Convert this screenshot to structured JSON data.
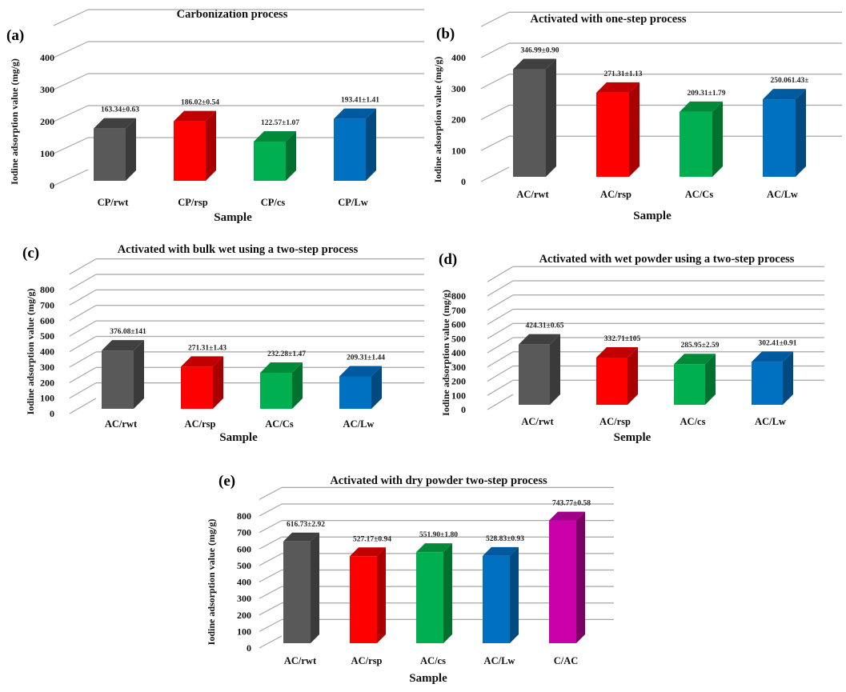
{
  "figure": {
    "colors": {
      "gray": [
        "#595959",
        "#3a3a3a",
        "#404040"
      ],
      "red": [
        "#ff0000",
        "#a80000",
        "#c00000"
      ],
      "green": [
        "#00b050",
        "#00702f",
        "#008a3a"
      ],
      "blue": [
        "#0070c0",
        "#004a80",
        "#005aa0"
      ],
      "magenta": [
        "#cc00aa",
        "#7a0066",
        "#a0008a"
      ]
    }
  },
  "chart_data": [
    {
      "id": "a",
      "panel_label": "(a)",
      "type": "bar",
      "style": "3d-column",
      "title": "Carbonization  process",
      "xlabel": "Sample",
      "ylabel": "Iodine adsorption value (mg/g)",
      "ylim": [
        0,
        400
      ],
      "yticks": [
        0,
        100,
        200,
        300,
        400
      ],
      "grid": true,
      "categories": [
        "CP/rwt",
        "CP/rsp",
        "CP/cs",
        "CP/Lw"
      ],
      "values": [
        163.34,
        186.02,
        122.57,
        193.41
      ],
      "data_labels": [
        "163.34±0.63",
        "186.02±0.54",
        "122.57±1.07",
        "193.41±1.41"
      ],
      "bar_colors": [
        "gray",
        "red",
        "green",
        "blue"
      ]
    },
    {
      "id": "b",
      "panel_label": "(b)",
      "type": "bar",
      "style": "3d-column",
      "title": "Activated with  one-step process",
      "xlabel": "Sample",
      "ylabel": "Iodine  adsorption  value  (mg/g)",
      "ylim": [
        0,
        400
      ],
      "yticks": [
        0,
        100,
        200,
        300,
        400
      ],
      "grid": true,
      "categories": [
        "AC/rwt",
        "AC/rsp",
        "AC/Cs",
        "AC/Lw"
      ],
      "values": [
        346.99,
        271.31,
        209.31,
        250.06
      ],
      "data_labels": [
        "346.99±0.90",
        "271.31±1.13",
        "209.31±1.79",
        "250.061.43±"
      ],
      "bar_colors": [
        "gray",
        "red",
        "green",
        "blue"
      ]
    },
    {
      "id": "c",
      "panel_label": "(c)",
      "type": "bar",
      "style": "3d-column",
      "title": "Activated with bulk wet using a two-step process",
      "xlabel": "Sample",
      "ylabel": "Iodine adsorption value (mg/g)",
      "ylim": [
        0,
        800
      ],
      "yticks": [
        0,
        100,
        200,
        300,
        400,
        500,
        600,
        700,
        800
      ],
      "grid": true,
      "categories": [
        "AC/rwt",
        "AC/rsp",
        "AC/Cs",
        "AC/Lw"
      ],
      "values": [
        376.08,
        271.31,
        232.28,
        209.31
      ],
      "data_labels": [
        "376.08±141",
        "271.31±1.43",
        "232.28±1.47",
        "209.31±1.44"
      ],
      "bar_colors": [
        "gray",
        "red",
        "green",
        "blue"
      ]
    },
    {
      "id": "d",
      "panel_label": "(d)",
      "type": "bar",
      "style": "3d-column",
      "title": "Activated with wet powder using a two-step process",
      "xlabel": "Semple",
      "ylabel": "Iodine adsorption value (mg/g)",
      "ylim": [
        0,
        800
      ],
      "yticks": [
        0,
        100,
        200,
        300,
        400,
        500,
        600,
        700,
        800
      ],
      "grid": true,
      "categories": [
        "AC/rwt",
        "AC/rsp",
        "AC/cs",
        "AC/Lw"
      ],
      "values": [
        424.31,
        332.71,
        285.95,
        302.41
      ],
      "data_labels": [
        "424.31±0.65",
        "332.71±105",
        "285.95±2.59",
        "302.41±0.91"
      ],
      "bar_colors": [
        "gray",
        "red",
        "green",
        "blue"
      ]
    },
    {
      "id": "e",
      "panel_label": "(e)",
      "type": "bar",
      "style": "3d-column",
      "title": "Activated with dry powder two-step process",
      "xlabel": "Sample",
      "ylabel": "Iodine  adsorption  value  (mg/g)",
      "ylim": [
        0,
        800
      ],
      "yticks": [
        0,
        100,
        200,
        300,
        400,
        500,
        600,
        700,
        800
      ],
      "grid": true,
      "categories": [
        "AC/rwt",
        "AC/rsp",
        "AC/cs",
        "AC/Lw",
        "C/AC"
      ],
      "values": [
        616.73,
        527.17,
        551.9,
        528.83,
        743.77
      ],
      "data_labels": [
        "616.73±2.92",
        "527.17±0.94",
        "551.90±1.80",
        "528.83±0.93",
        "743.77±0.58"
      ],
      "bar_colors": [
        "gray",
        "red",
        "green",
        "blue",
        "magenta"
      ]
    }
  ]
}
